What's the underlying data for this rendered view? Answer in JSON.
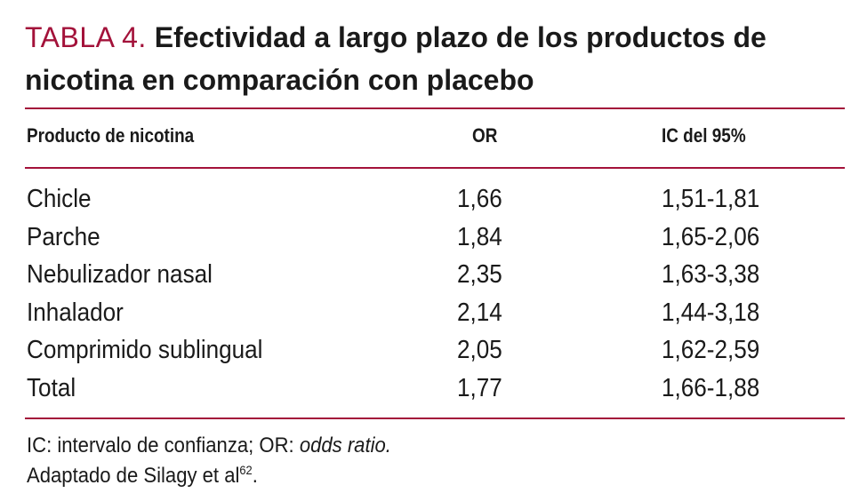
{
  "title": {
    "label": "TABLA 4.",
    "text": "Efectividad a largo plazo de los productos de nicotina en comparación con placebo"
  },
  "columns": [
    "Producto de nicotina",
    "OR",
    "IC del 95%"
  ],
  "rows": [
    {
      "producto": "Chicle",
      "or": "1,66",
      "ic": "1,51-1,81"
    },
    {
      "producto": "Parche",
      "or": "1,84",
      "ic": "1,65-2,06"
    },
    {
      "producto": "Nebulizador nasal",
      "or": "2,35",
      "ic": "1,63-3,38"
    },
    {
      "producto": "Inhalador",
      "or": "2,14",
      "ic": "1,44-3,18"
    },
    {
      "producto": "Comprimido sublingual",
      "or": "2,05",
      "ic": "1,62-2,59"
    },
    {
      "producto": "Total",
      "or": "1,77",
      "ic": "1,66-1,88"
    }
  ],
  "footnotes": {
    "line1_prefix": "IC: intervalo de confianza; OR: ",
    "line1_italic": "odds ratio.",
    "line2_text": "Adaptado de Silagy et al",
    "line2_ref": "62",
    "line2_suffix": "."
  },
  "colors": {
    "accent": "#a3123a",
    "text": "#1a1a1a"
  }
}
